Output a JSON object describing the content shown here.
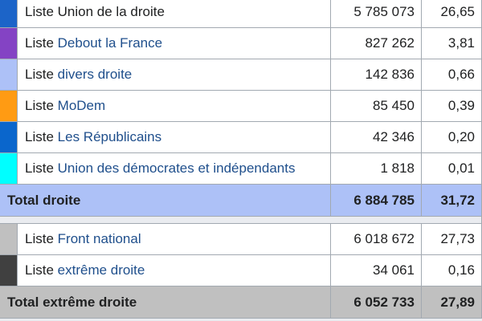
{
  "groups": [
    {
      "rows": [
        {
          "color": "#1c64c8",
          "prefix": "Liste",
          "name": "Union de la droite",
          "linked": false,
          "votes": "5 785 073",
          "percent": "26,65"
        },
        {
          "color": "#8443c4",
          "prefix": "Liste",
          "name": "Debout la France",
          "linked": true,
          "votes": "827 262",
          "percent": "3,81"
        },
        {
          "color": "#adc1f7",
          "prefix": "Liste",
          "name": "divers droite",
          "linked": true,
          "votes": "142 836",
          "percent": "0,66"
        },
        {
          "color": "#ff9b13",
          "prefix": "Liste",
          "name": "MoDem",
          "linked": true,
          "votes": "85 450",
          "percent": "0,39"
        },
        {
          "color": "#0a66cc",
          "prefix": "Liste",
          "name": "Les Républicains",
          "linked": true,
          "votes": "42 346",
          "percent": "0,20"
        },
        {
          "color": "#00ffff",
          "prefix": "Liste",
          "name": "Union des démocrates et indépendants",
          "linked": true,
          "votes": "1 818",
          "percent": "0,01"
        }
      ],
      "total": {
        "label": "Total droite",
        "votes": "6 884 785",
        "percent": "31,72",
        "color": "#adc1f7"
      }
    },
    {
      "rows": [
        {
          "color": "#c0c0c0",
          "prefix": "Liste",
          "name": "Front national",
          "linked": true,
          "votes": "6 018 672",
          "percent": "27,73"
        },
        {
          "color": "#404040",
          "prefix": "Liste",
          "name": "extrême droite",
          "linked": true,
          "votes": "34 061",
          "percent": "0,16"
        }
      ],
      "total": {
        "label": "Total extrême droite",
        "votes": "6 052 733",
        "percent": "27,89",
        "color": "#c0c0c0"
      }
    }
  ]
}
